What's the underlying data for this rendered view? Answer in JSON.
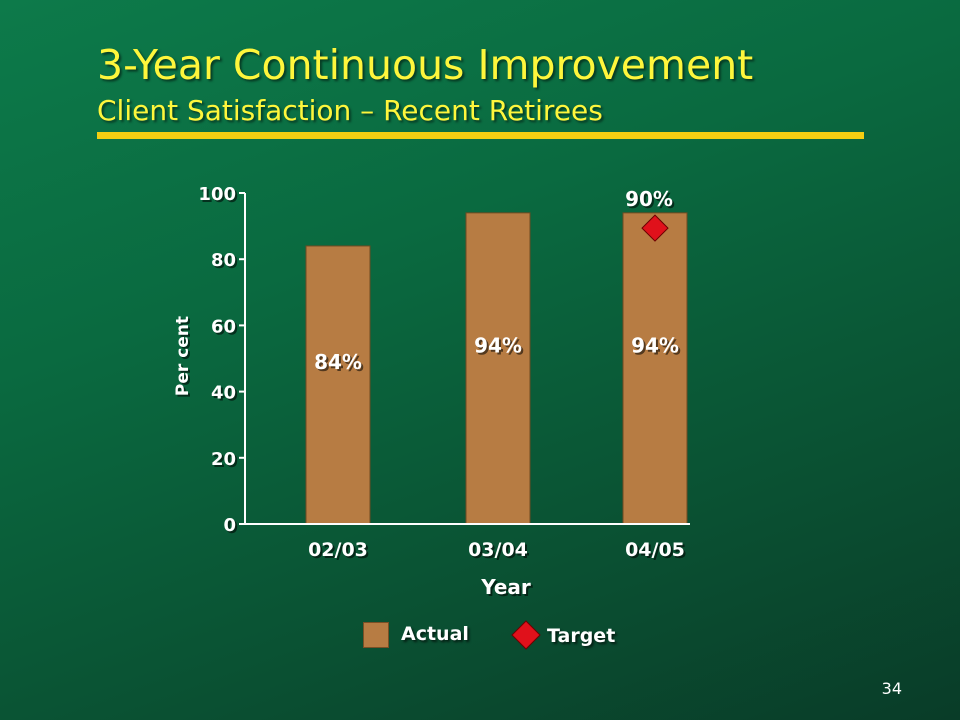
{
  "slide": {
    "title": "3-Year Continuous Improvement",
    "subtitle": "Client Satisfaction – Recent Retirees",
    "page_number": "34"
  },
  "colors": {
    "bar": "#b77c43",
    "target": "#e0111b",
    "title": "#fef63c",
    "rule": "#f3cf12",
    "text": "#ffffff"
  },
  "chart_data": {
    "type": "bar",
    "title": "",
    "xlabel": "Year",
    "ylabel": "Per cent",
    "categories": [
      "02/03",
      "03/04",
      "04/05"
    ],
    "series": [
      {
        "name": "Actual",
        "values": [
          84,
          94,
          94
        ],
        "labels": [
          "84%",
          "94%",
          "94%"
        ]
      },
      {
        "name": "Target",
        "values": [
          null,
          null,
          90
        ],
        "labels": [
          null,
          null,
          "90%"
        ],
        "marker": "diamond"
      }
    ],
    "ylim": [
      0,
      100
    ],
    "yticks": [
      0,
      20,
      40,
      60,
      80,
      100
    ],
    "grid": false,
    "legend": "bottom"
  }
}
